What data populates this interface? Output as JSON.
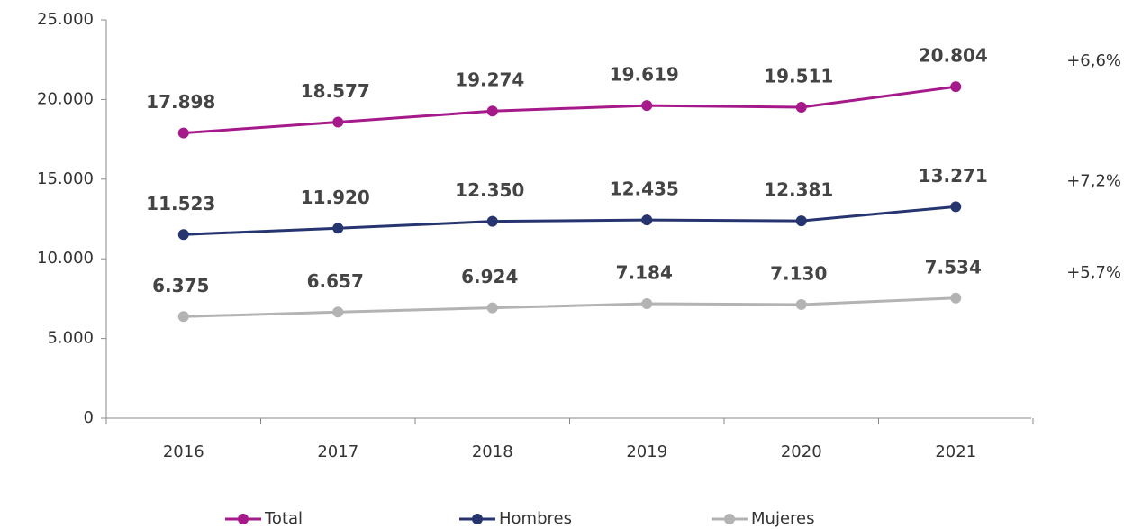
{
  "chart_data": {
    "type": "line",
    "categories": [
      "2016",
      "2017",
      "2018",
      "2019",
      "2020",
      "2021"
    ],
    "series": [
      {
        "name": "Total",
        "color": "#a5198b",
        "values": [
          17898,
          18577,
          19274,
          19619,
          19511,
          20804
        ],
        "value_labels": [
          "17.898",
          "18.577",
          "19.274",
          "19.619",
          "19.511",
          "20.804"
        ]
      },
      {
        "name": "Hombres",
        "color": "#263570",
        "values": [
          11523,
          11920,
          12350,
          12435,
          12381,
          13271
        ],
        "value_labels": [
          "11.523",
          "11.920",
          "12.350",
          "12.435",
          "12.381",
          "13.271"
        ]
      },
      {
        "name": "Mujeres",
        "color": "#b3b3b3",
        "values": [
          6375,
          6657,
          6924,
          7184,
          7130,
          7534
        ],
        "value_labels": [
          "6.375",
          "6.657",
          "6.924",
          "7.184",
          "7.130",
          "7.534"
        ]
      }
    ],
    "ylim": [
      0,
      25000
    ],
    "yticks": [
      0,
      {
        "value": 5000,
        "label": "5.000"
      },
      {
        "value": 10000,
        "label": "10.000"
      },
      {
        "value": 15000,
        "label": "15.000"
      },
      {
        "value": 20000,
        "label": "20.000"
      },
      {
        "value": 25000,
        "label": "25.000"
      }
    ],
    "annotations": [
      "+6,6%",
      "+7,2%",
      "+5,7%"
    ],
    "annotation_color": "#00b050",
    "legend": "bottom"
  }
}
